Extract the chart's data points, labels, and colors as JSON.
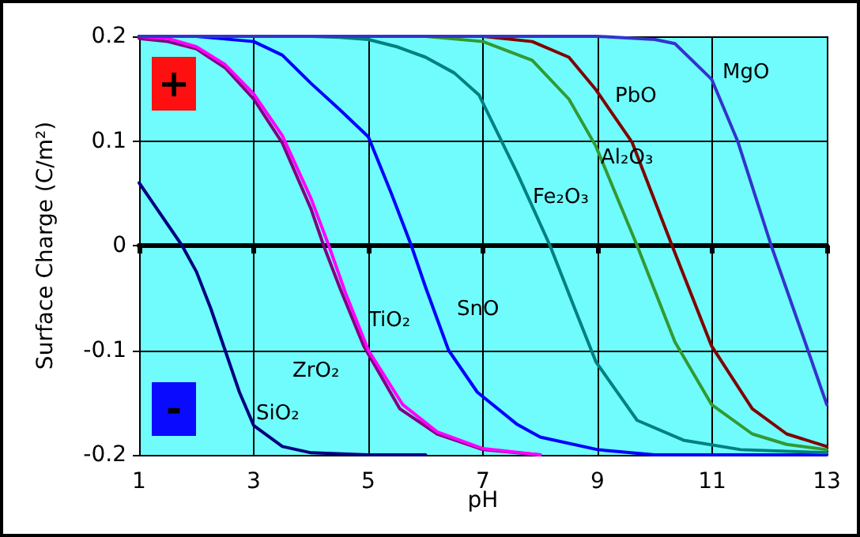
{
  "chart_data": {
    "type": "line",
    "xlabel": "pH",
    "ylabel": "Surface Charge (C/m²)",
    "xlim": [
      1,
      13
    ],
    "ylim": [
      -0.2,
      0.2
    ],
    "xticks": [
      1,
      3,
      5,
      7,
      9,
      11,
      13
    ],
    "yticks": [
      -0.2,
      -0.1,
      0,
      0.1,
      0.2
    ],
    "grid": true,
    "marker": "none",
    "line_style": "solid",
    "series": [
      {
        "color": "#000080",
        "x": [
          1,
          1.5,
          1.75,
          2,
          2.25,
          2.5,
          2.75,
          3,
          3.5,
          4,
          5,
          6
        ],
        "values": [
          0.06,
          0.02,
          0,
          -0.025,
          -0.06,
          -0.1,
          -0.14,
          -0.172,
          -0.192,
          -0.198,
          -0.2,
          -0.2
        ]
      },
      {
        "color": "#800080",
        "x": [
          1,
          1.5,
          2,
          2.5,
          3,
          3.5,
          4,
          4.22,
          4.5,
          4.92,
          5.55,
          6.2,
          7,
          8
        ],
        "values": [
          0.198,
          0.195,
          0.188,
          0.17,
          0.14,
          0.098,
          0.035,
          0,
          -0.04,
          -0.096,
          -0.156,
          -0.18,
          -0.195,
          -0.2
        ]
      },
      {
        "color": "#ff00ff",
        "x": [
          1,
          1.5,
          2,
          2.5,
          3,
          3.5,
          4,
          4.31,
          4.6,
          5,
          5.6,
          6.2,
          7,
          8
        ],
        "values": [
          0.2,
          0.198,
          0.19,
          0.173,
          0.145,
          0.105,
          0.045,
          0,
          -0.045,
          -0.1,
          -0.152,
          -0.178,
          -0.194,
          -0.2
        ]
      },
      {
        "color": "#0000ff",
        "x": [
          1,
          2,
          3,
          3.5,
          4,
          4.5,
          5,
          5.4,
          5.75,
          6,
          6.4,
          6.9,
          7.6,
          8,
          9,
          10,
          13
        ],
        "values": [
          0.2,
          0.2,
          0.195,
          0.182,
          0.155,
          0.13,
          0.104,
          0.05,
          0,
          -0.04,
          -0.1,
          -0.14,
          -0.171,
          -0.183,
          -0.195,
          -0.2,
          -0.2
        ]
      },
      {
        "color": "#008080",
        "x": [
          1,
          4,
          4.5,
          5,
          5.5,
          6,
          6.5,
          6.93,
          7.6,
          8.17,
          8.6,
          8.97,
          9.69,
          10.5,
          11.5,
          13
        ],
        "values": [
          0.2,
          0.2,
          0.199,
          0.197,
          0.19,
          0.18,
          0.165,
          0.144,
          0.069,
          0,
          -0.06,
          -0.111,
          -0.167,
          -0.186,
          -0.195,
          -0.198
        ]
      },
      {
        "color": "#339933",
        "x": [
          1,
          6,
          7,
          7.86,
          8.5,
          8.97,
          9.69,
          10.35,
          10.99,
          11.7,
          12.3,
          13
        ],
        "values": [
          0.2,
          0.2,
          0.195,
          0.177,
          0.14,
          0.095,
          0,
          -0.092,
          -0.152,
          -0.18,
          -0.19,
          -0.195
        ]
      },
      {
        "color": "#800000",
        "x": [
          1,
          7,
          7.86,
          8.5,
          8.97,
          9.6,
          10.3,
          10.99,
          11.7,
          12.3,
          13
        ],
        "values": [
          0.2,
          0.2,
          0.195,
          0.18,
          0.149,
          0.099,
          0,
          -0.096,
          -0.156,
          -0.18,
          -0.192
        ]
      },
      {
        "color": "#3333cc",
        "x": [
          1,
          9,
          10,
          10.35,
          10.99,
          11.45,
          12.03,
          12.55,
          13
        ],
        "values": [
          0.2,
          0.2,
          0.197,
          0.193,
          0.159,
          0.099,
          0,
          -0.081,
          -0.152
        ]
      }
    ],
    "annotations": [
      "+",
      "-",
      "SiO₂",
      "ZrO₂",
      "TiO₂",
      "SnO",
      "Fe₂O₃",
      "Al₂O₃",
      "PbO",
      "MgO"
    ]
  }
}
